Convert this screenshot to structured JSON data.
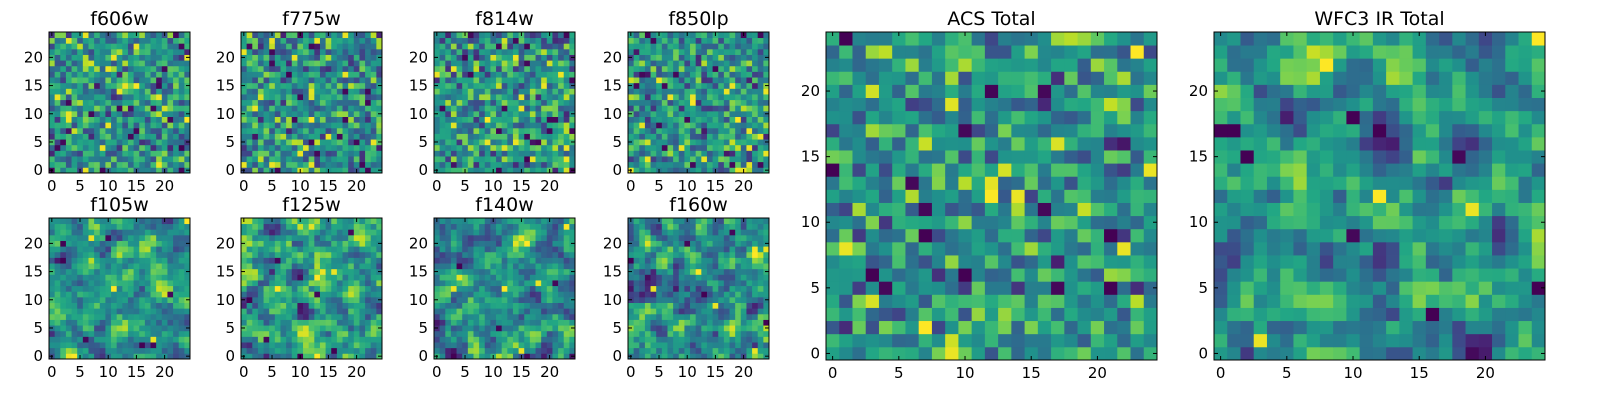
{
  "figure": {
    "background": "#ffffff",
    "colormap": "viridis"
  },
  "chart_data": [
    {
      "type": "heatmap",
      "title": "f606w",
      "x_ticks": [
        0,
        5,
        10,
        15,
        20
      ],
      "y_ticks": [
        0,
        5,
        10,
        15,
        20
      ],
      "grid_size": 25,
      "seed": 11,
      "smooth": 0,
      "spikes": [],
      "extremes": 30
    },
    {
      "type": "heatmap",
      "title": "f775w",
      "x_ticks": [
        0,
        5,
        10,
        15,
        20
      ],
      "y_ticks": [
        0,
        5,
        10,
        15,
        20
      ],
      "grid_size": 25,
      "seed": 23,
      "smooth": 0,
      "spikes": [],
      "extremes": 30
    },
    {
      "type": "heatmap",
      "title": "f814w",
      "x_ticks": [
        0,
        5,
        10,
        15,
        20
      ],
      "y_ticks": [
        0,
        5,
        10,
        15,
        20
      ],
      "grid_size": 25,
      "seed": 37,
      "smooth": 0,
      "spikes": [
        [
          12,
          12,
          0.8
        ]
      ],
      "extremes": 28
    },
    {
      "type": "heatmap",
      "title": "f850lp",
      "x_ticks": [
        0,
        5,
        10,
        15,
        20
      ],
      "y_ticks": [
        0,
        5,
        10,
        15,
        20
      ],
      "grid_size": 25,
      "seed": 41,
      "smooth": 0,
      "spikes": [],
      "extremes": 30
    },
    {
      "type": "heatmap",
      "title": "f105w",
      "x_ticks": [
        0,
        5,
        10,
        15,
        20
      ],
      "y_ticks": [
        0,
        5,
        10,
        15,
        20
      ],
      "grid_size": 25,
      "seed": 53,
      "smooth": 1,
      "spikes": [
        [
          11,
          12,
          1.2
        ],
        [
          24,
          24,
          1.3
        ],
        [
          2,
          20,
          -1.3
        ],
        [
          16,
          2,
          -1.0
        ]
      ],
      "extremes": 6
    },
    {
      "type": "heatmap",
      "title": "f125w",
      "x_ticks": [
        0,
        5,
        10,
        15,
        20
      ],
      "y_ticks": [
        0,
        5,
        10,
        15,
        20
      ],
      "grid_size": 25,
      "seed": 67,
      "smooth": 1,
      "spikes": [
        [
          10,
          0,
          -1.4
        ],
        [
          16,
          1,
          -1.2
        ],
        [
          13,
          14,
          1.0
        ]
      ],
      "extremes": 6
    },
    {
      "type": "heatmap",
      "title": "f140w",
      "x_ticks": [
        0,
        5,
        10,
        15,
        20
      ],
      "y_ticks": [
        0,
        5,
        10,
        15,
        20
      ],
      "grid_size": 25,
      "seed": 79,
      "smooth": 1,
      "spikes": [
        [
          4,
          16,
          -1.3
        ],
        [
          12,
          12,
          1.0
        ],
        [
          23,
          23,
          1.2
        ]
      ],
      "extremes": 6
    },
    {
      "type": "heatmap",
      "title": "f160w",
      "x_ticks": [
        0,
        5,
        10,
        15,
        20
      ],
      "y_ticks": [
        0,
        5,
        10,
        15,
        20
      ],
      "grid_size": 25,
      "seed": 83,
      "smooth": 1,
      "spikes": [
        [
          12,
          15,
          1.2
        ],
        [
          24,
          6,
          -1.2
        ],
        [
          0,
          17,
          -1.0
        ]
      ],
      "extremes": 6
    },
    {
      "type": "heatmap",
      "title": "ACS Total",
      "x_ticks": [
        0,
        5,
        10,
        15,
        20
      ],
      "y_ticks": [
        0,
        5,
        10,
        15,
        20
      ],
      "grid_size": 25,
      "seed": 97,
      "smooth": 0,
      "spikes": [
        [
          1,
          24,
          -1.4
        ],
        [
          0,
          14,
          -1.4
        ],
        [
          21,
          9,
          -1.4
        ],
        [
          21,
          5,
          -1.2
        ],
        [
          10,
          6,
          -1.3
        ],
        [
          3,
          6,
          -1.2
        ],
        [
          23,
          23,
          1.4
        ],
        [
          12,
          12,
          0.9
        ]
      ],
      "extremes": 12
    },
    {
      "type": "heatmap",
      "title": "WFC3 IR Total",
      "x_ticks": [
        0,
        5,
        10,
        15,
        20
      ],
      "y_ticks": [
        0,
        5,
        10,
        15,
        20
      ],
      "grid_size": 25,
      "seed": 109,
      "smooth": 1,
      "spikes": [
        [
          0,
          17,
          -1.6
        ],
        [
          1,
          17,
          -1.4
        ],
        [
          10,
          18,
          -1.6
        ],
        [
          24,
          5,
          -1.5
        ],
        [
          16,
          3,
          -1.4
        ],
        [
          24,
          24,
          1.6
        ],
        [
          12,
          12,
          1.4
        ],
        [
          2,
          15,
          -1.0
        ]
      ],
      "extremes": 4
    }
  ]
}
